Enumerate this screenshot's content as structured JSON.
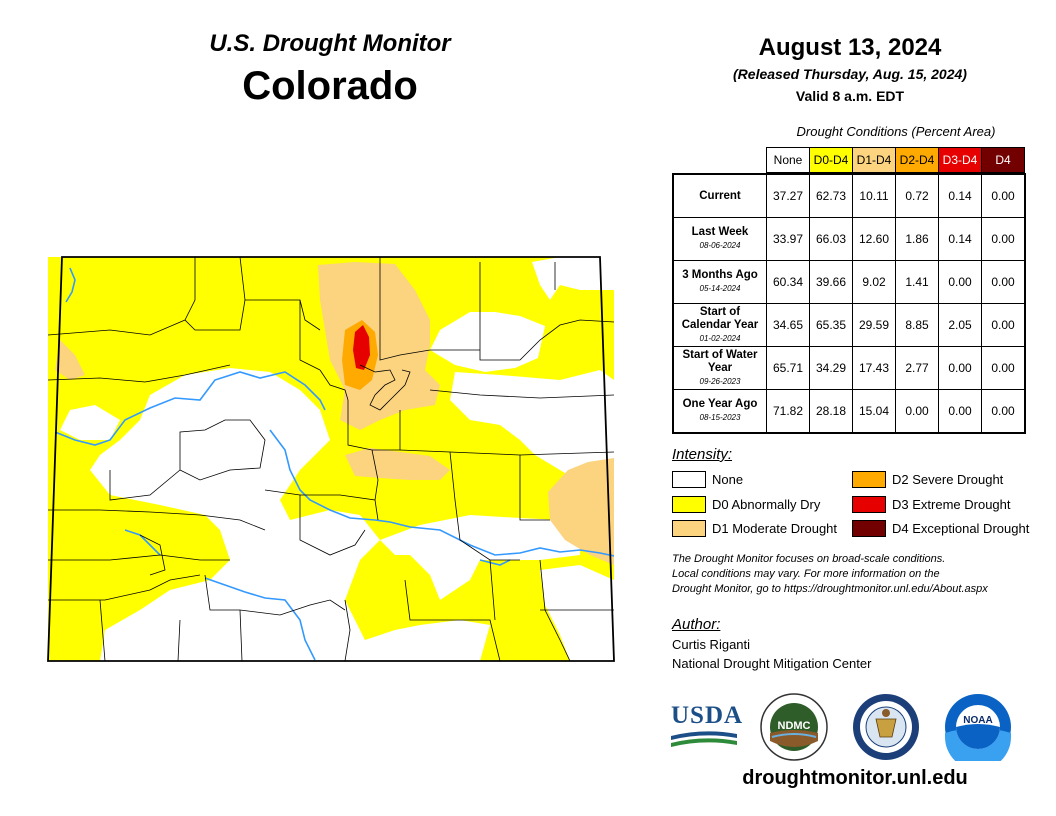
{
  "header": {
    "title": "U.S. Drought Monitor",
    "state": "Colorado",
    "date": "August 13, 2024",
    "released": "(Released Thursday, Aug. 15, 2024)",
    "valid": "Valid 8 a.m. EDT"
  },
  "table": {
    "caption": "Drought Conditions (Percent Area)",
    "columns": [
      {
        "label": "None",
        "bg": "#ffffff",
        "fg": "#000000"
      },
      {
        "label": "D0-D4",
        "bg": "#ffff00",
        "fg": "#000000"
      },
      {
        "label": "D1-D4",
        "bg": "#fcd37f",
        "fg": "#000000"
      },
      {
        "label": "D2-D4",
        "bg": "#ffaa00",
        "fg": "#000000"
      },
      {
        "label": "D3-D4",
        "bg": "#e60000",
        "fg": "#ffffff"
      },
      {
        "label": "D4",
        "bg": "#730000",
        "fg": "#ffffff"
      }
    ],
    "rows": [
      {
        "label": "Current",
        "date": "",
        "values": [
          "37.27",
          "62.73",
          "10.11",
          "0.72",
          "0.14",
          "0.00"
        ]
      },
      {
        "label": "Last Week",
        "date": "08-06-2024",
        "values": [
          "33.97",
          "66.03",
          "12.60",
          "1.86",
          "0.14",
          "0.00"
        ]
      },
      {
        "label": "3 Months Ago",
        "date": "05-14-2024",
        "values": [
          "60.34",
          "39.66",
          "9.02",
          "1.41",
          "0.00",
          "0.00"
        ]
      },
      {
        "label": "Start of Calendar Year",
        "date": "01-02-2024",
        "values": [
          "34.65",
          "65.35",
          "29.59",
          "8.85",
          "2.05",
          "0.00"
        ]
      },
      {
        "label": "Start of Water Year",
        "date": "09-26-2023",
        "values": [
          "65.71",
          "34.29",
          "17.43",
          "2.77",
          "0.00",
          "0.00"
        ]
      },
      {
        "label": "One Year Ago",
        "date": "08-15-2023",
        "values": [
          "71.82",
          "28.18",
          "15.04",
          "0.00",
          "0.00",
          "0.00"
        ]
      }
    ]
  },
  "legend": {
    "title": "Intensity:",
    "items": [
      {
        "label": "None",
        "color": "#ffffff"
      },
      {
        "label": "D0 Abnormally Dry",
        "color": "#ffff00"
      },
      {
        "label": "D1 Moderate Drought",
        "color": "#fcd37f"
      },
      {
        "label": "D2 Severe Drought",
        "color": "#ffaa00"
      },
      {
        "label": "D3 Extreme Drought",
        "color": "#e60000"
      },
      {
        "label": "D4 Exceptional Drought",
        "color": "#730000"
      }
    ]
  },
  "note": {
    "line1": "The Drought Monitor focuses on broad-scale conditions.",
    "line2": "Local conditions may vary. For more information on the",
    "line3": "Drought Monitor, go to https://droughtmonitor.unl.edu/About.aspx"
  },
  "author": {
    "label": "Author:",
    "name": "Curtis Riganti",
    "org": "National Drought Mitigation Center"
  },
  "logos": {
    "usda": "USDA",
    "ndmc": "NDMC",
    "noaa": "NOAA"
  },
  "website": "droughtmonitor.unl.edu",
  "colors": {
    "none": "#ffffff",
    "d0": "#ffff00",
    "d1": "#fcd37f",
    "d2": "#ffaa00",
    "d3": "#e60000",
    "d4": "#730000",
    "rivers": "#3399ff"
  }
}
